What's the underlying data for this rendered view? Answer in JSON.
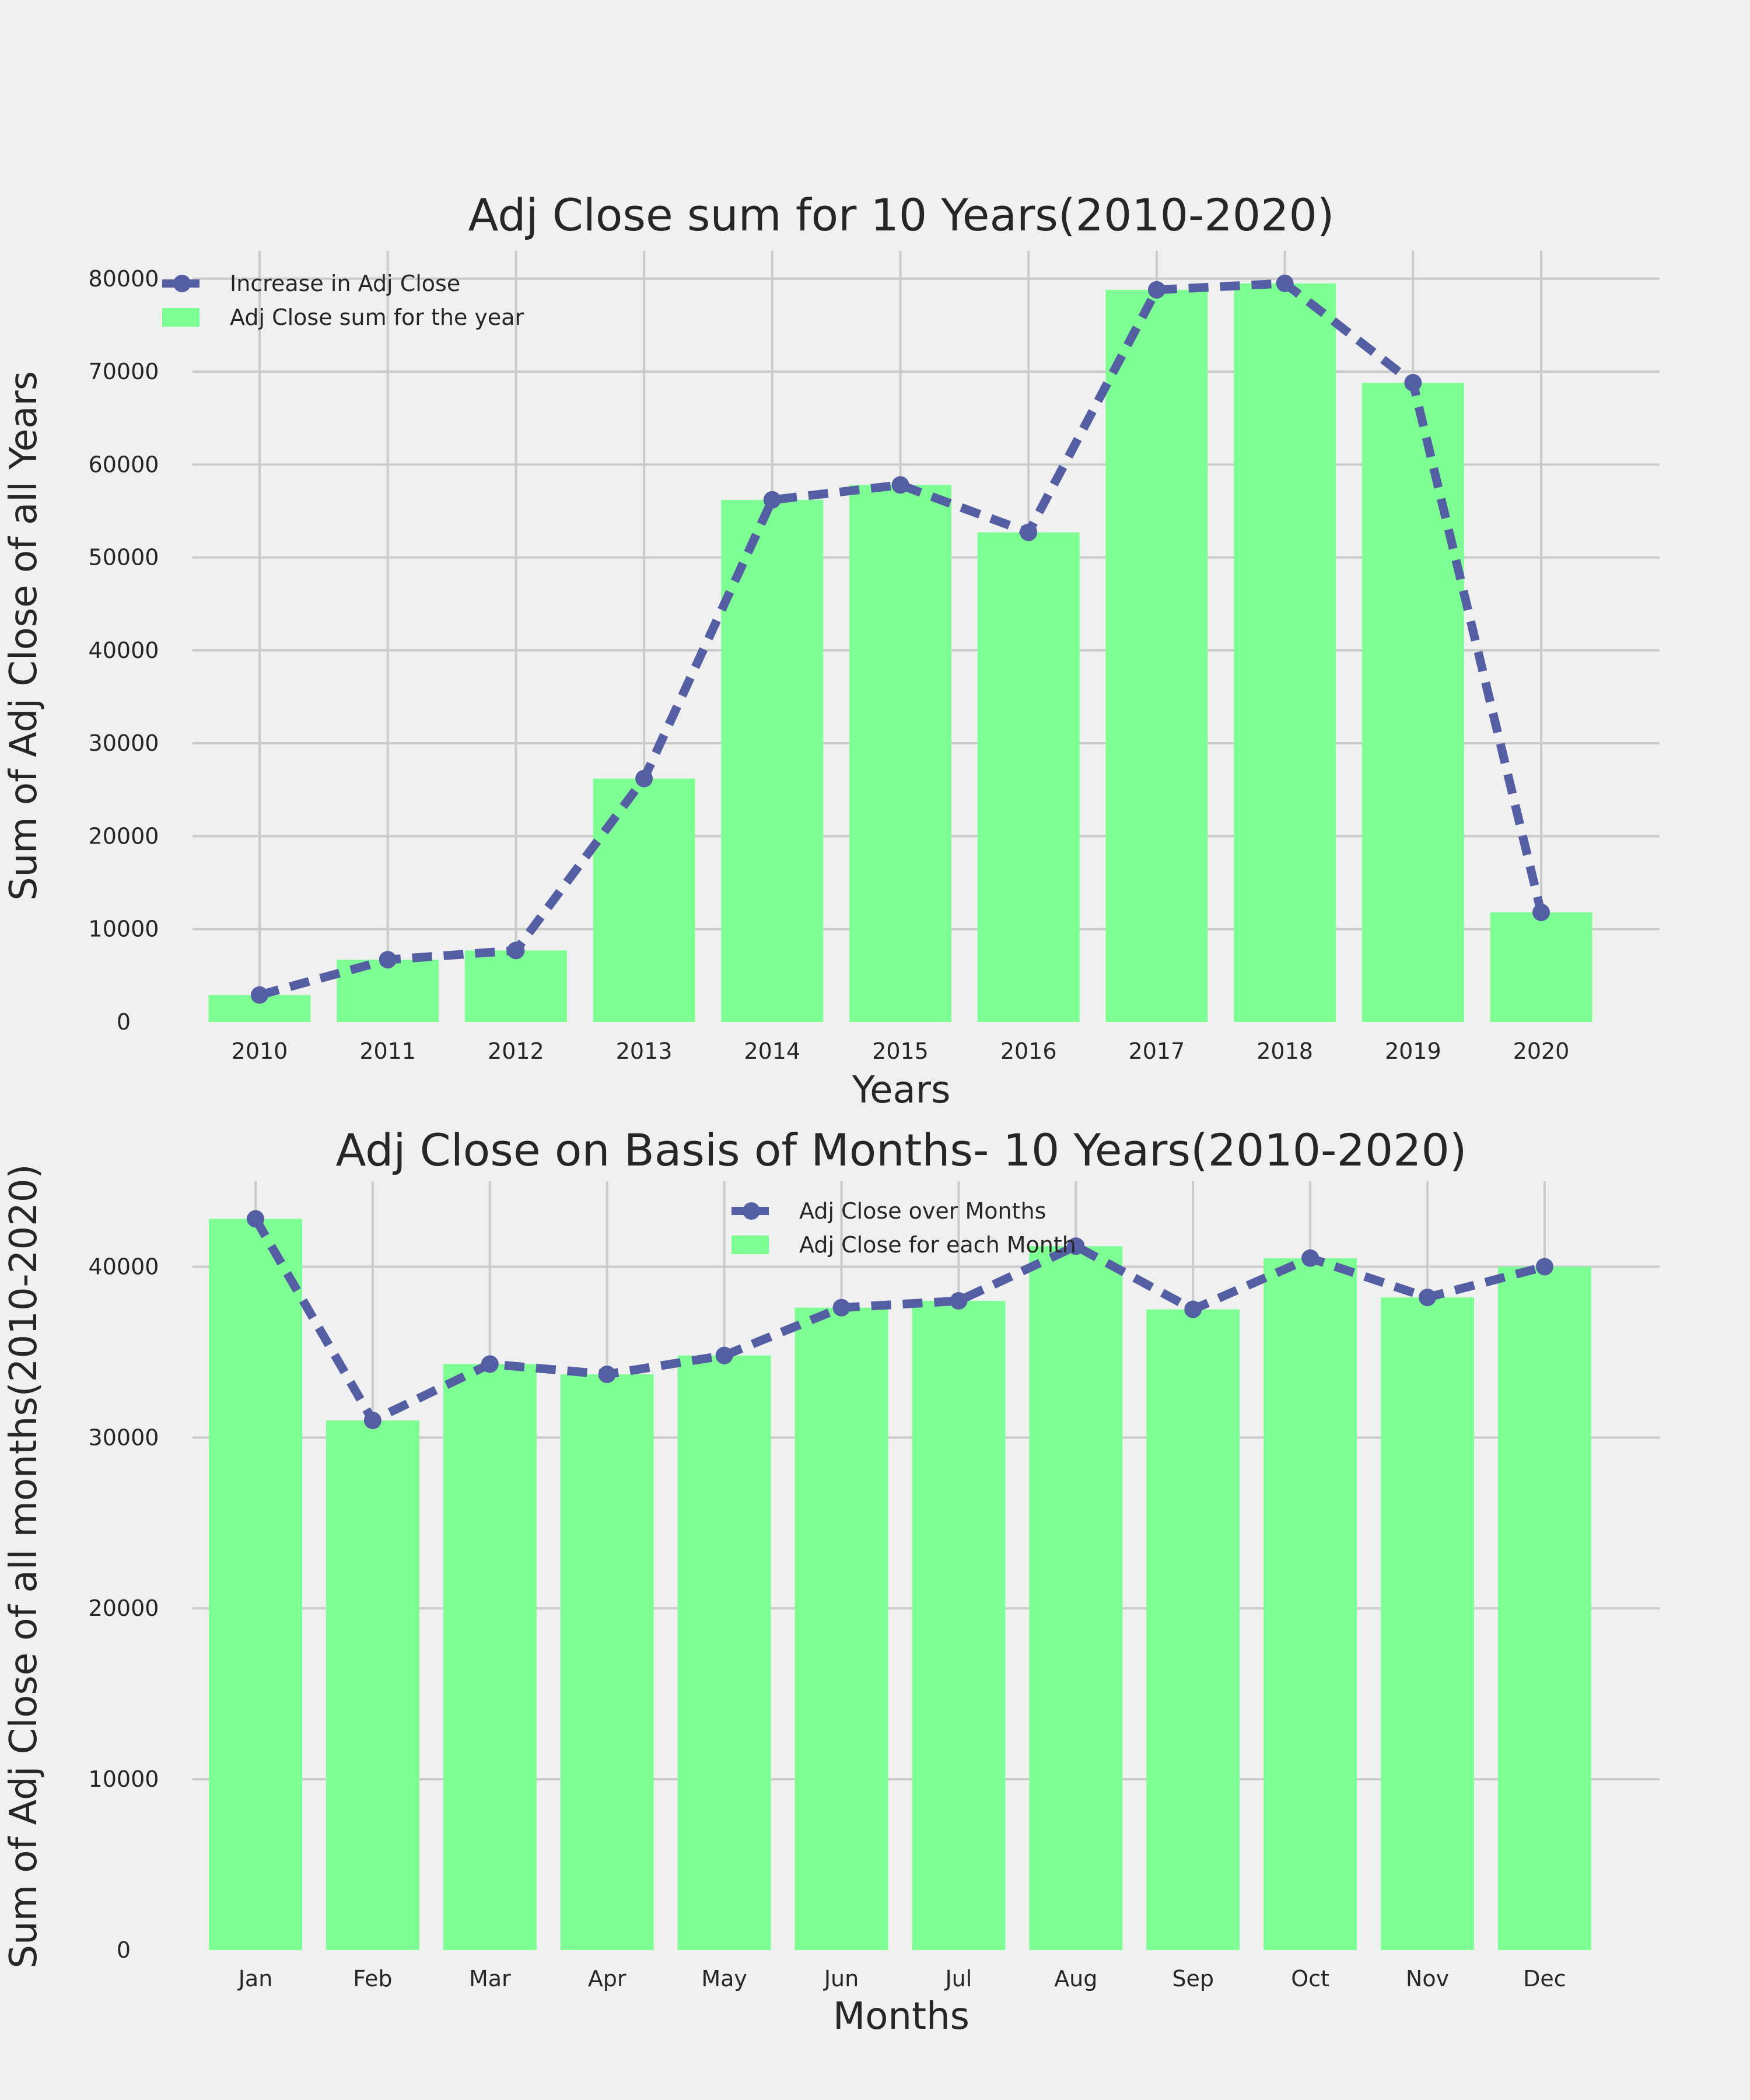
{
  "colors": {
    "background": "#f0f0f0",
    "bar": "#7dff94",
    "line": "#545ea2",
    "grid": "#cbcbcb",
    "text": "#262626"
  },
  "chart_data": [
    {
      "type": "bar",
      "title": "Adj Close sum for 10 Years(2010-2020)",
      "xlabel": "Years",
      "ylabel": "Sum of Adj Close of all Years",
      "categories": [
        "2010",
        "2011",
        "2012",
        "2013",
        "2014",
        "2015",
        "2016",
        "2017",
        "2018",
        "2019",
        "2020"
      ],
      "series": [
        {
          "name": "Increase in Adj Close",
          "type": "line",
          "style": "dashed-with-markers",
          "values": [
            2900,
            6700,
            7700,
            26200,
            56200,
            57800,
            52700,
            78800,
            79500,
            68800,
            11800
          ]
        },
        {
          "name": "Adj Close sum for the year",
          "type": "bar",
          "values": [
            2900,
            6700,
            7700,
            26200,
            56200,
            57800,
            52700,
            78800,
            79500,
            68800,
            11800
          ]
        }
      ],
      "yticks": [
        0,
        10000,
        20000,
        30000,
        40000,
        50000,
        60000,
        70000,
        80000
      ],
      "ylim": [
        0,
        83000
      ],
      "grid": true,
      "legend_position": "top-left"
    },
    {
      "type": "bar",
      "title": "Adj Close on Basis of Months-  10 Years(2010-2020)",
      "xlabel": "Months",
      "ylabel": "Sum of Adj Close of all months(2010-2020)",
      "categories": [
        "Jan",
        "Feb",
        "Mar",
        "Apr",
        "May",
        "Jun",
        "Jul",
        "Aug",
        "Sep",
        "Oct",
        "Nov",
        "Dec"
      ],
      "series": [
        {
          "name": "Adj Close over Months",
          "type": "line",
          "style": "dashed-with-markers",
          "values": [
            42800,
            31000,
            34300,
            33700,
            34800,
            37600,
            38000,
            41200,
            37500,
            40500,
            38200,
            40000
          ]
        },
        {
          "name": "Adj Close for each Month",
          "type": "bar",
          "values": [
            42800,
            31000,
            34300,
            33700,
            34800,
            37600,
            38000,
            41200,
            37500,
            40500,
            38200,
            40000
          ]
        }
      ],
      "yticks": [
        0,
        10000,
        20000,
        30000,
        40000
      ],
      "ylim": [
        0,
        45000
      ],
      "grid": true,
      "legend_position": "top-center"
    }
  ]
}
